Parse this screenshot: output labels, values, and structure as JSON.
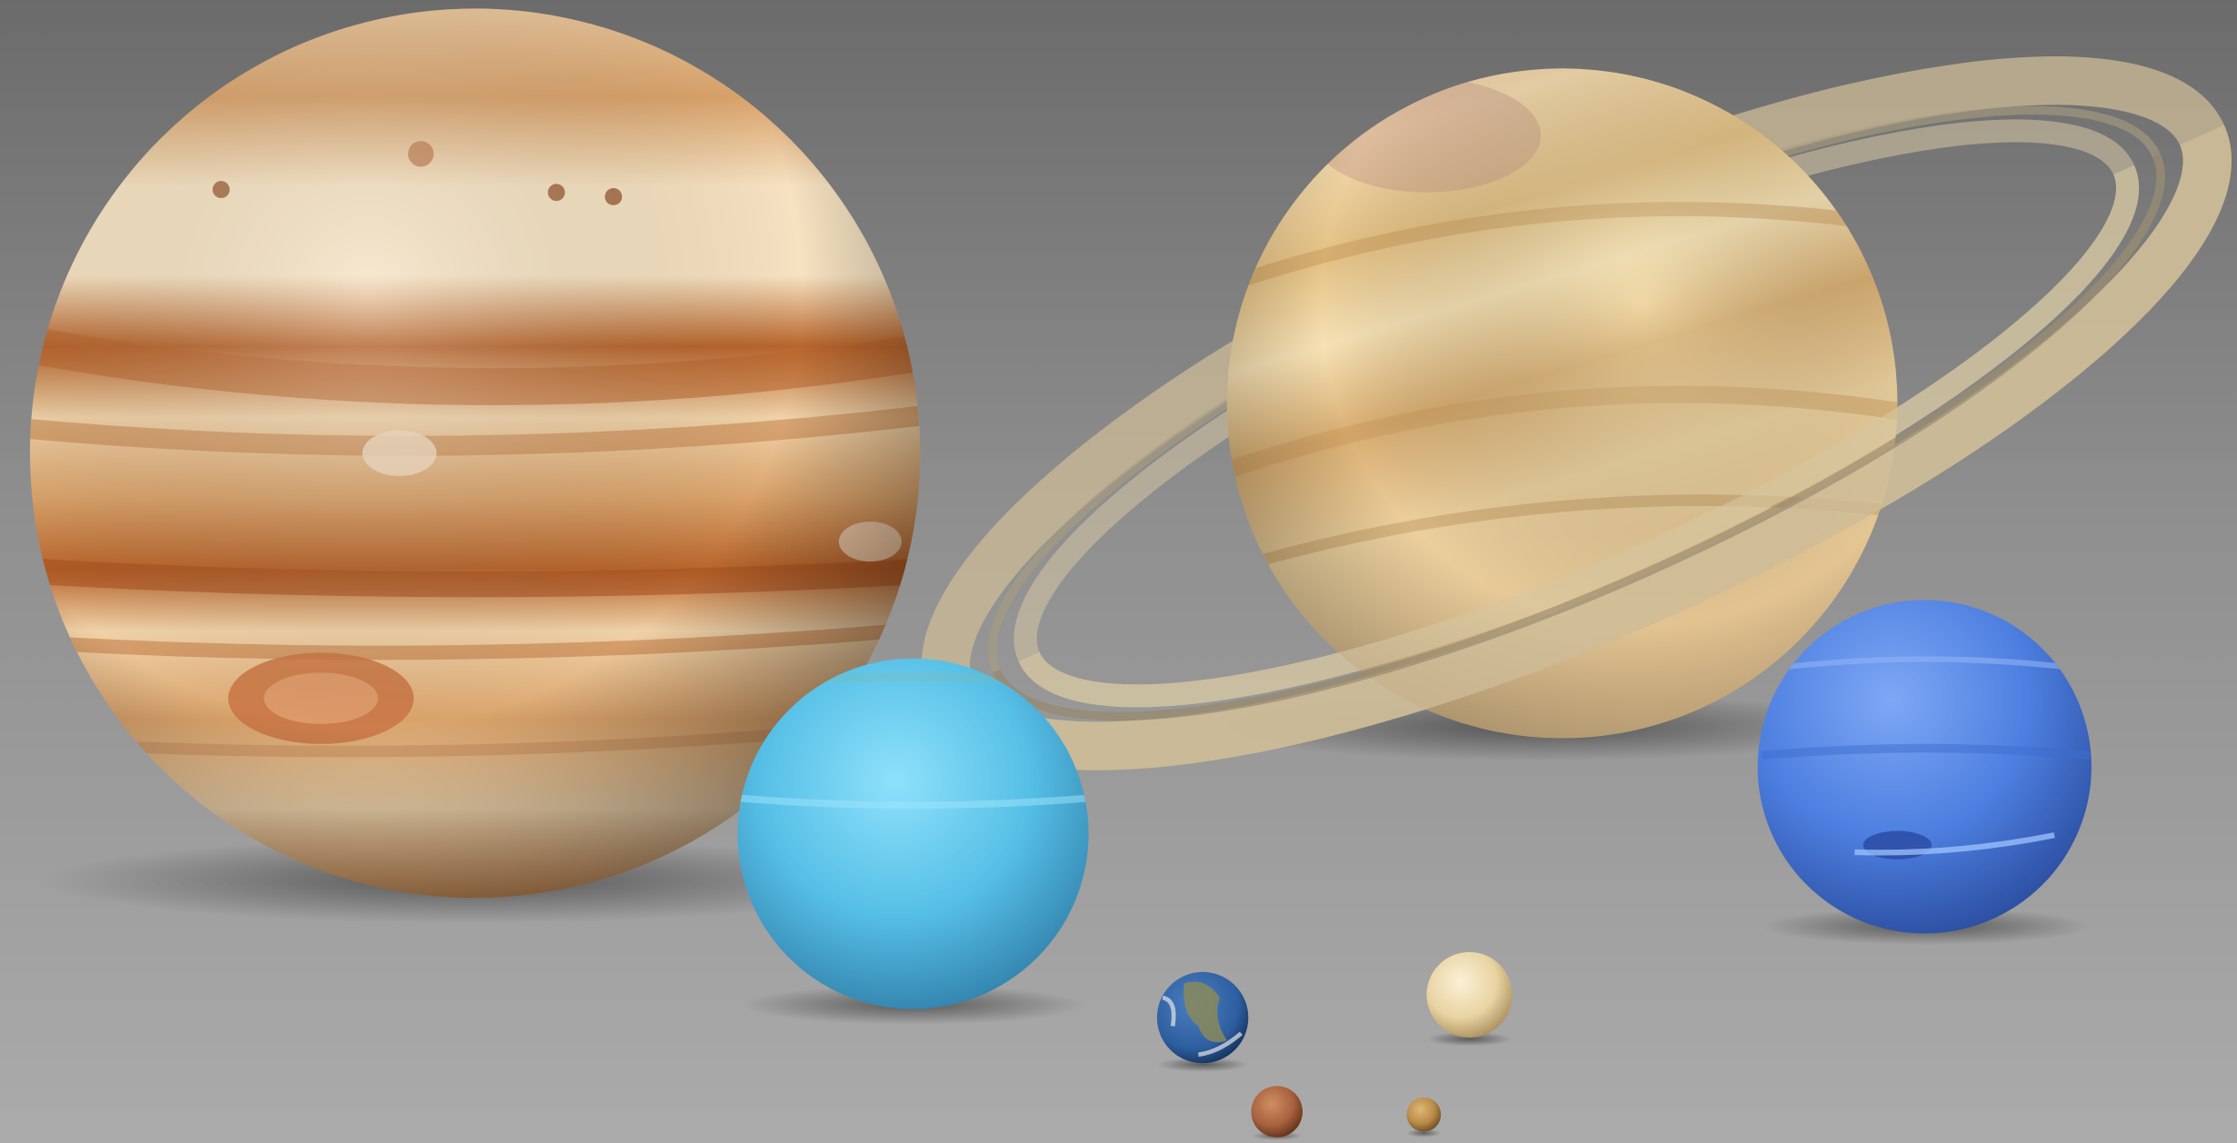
{
  "scene": {
    "background": {
      "top": "#6b6b6b",
      "middle": "#8f8f8f",
      "bottom": "#ababab"
    },
    "planets": [
      {
        "id": "jupiter",
        "icon": "jupiter-icon",
        "base": "#d9a26a",
        "light": "#f6e2c1",
        "band": "#b8652c",
        "shade": "#7a4a24"
      },
      {
        "id": "saturn",
        "icon": "saturn-icon",
        "base": "#e4c184",
        "light": "#f7e2b5",
        "band": "#c99a5c",
        "shade": "#8c6a3e",
        "ring": "#cdbb97"
      },
      {
        "id": "uranus",
        "icon": "uranus-icon",
        "base": "#56bfe6",
        "light": "#8ee1fb",
        "shade": "#2f7ea8"
      },
      {
        "id": "neptune",
        "icon": "neptune-icon",
        "base": "#4d7fe0",
        "light": "#7ea8f5",
        "shade": "#2a4c9e"
      },
      {
        "id": "earth",
        "icon": "earth-icon",
        "ocean": "#2d5ea0",
        "land": "#8a8a5a",
        "cloud": "#e6e6e6"
      },
      {
        "id": "venus",
        "icon": "venus-icon",
        "base": "#e8d3a2",
        "light": "#fbf1d6",
        "shade": "#a98d5a"
      },
      {
        "id": "mars",
        "icon": "mars-icon",
        "base": "#a8623e",
        "light": "#d08d62",
        "shade": "#5e2f18"
      },
      {
        "id": "mercury",
        "icon": "mercury-icon",
        "base": "#b88a48",
        "light": "#e0b878",
        "shade": "#6a4a20"
      }
    ]
  }
}
